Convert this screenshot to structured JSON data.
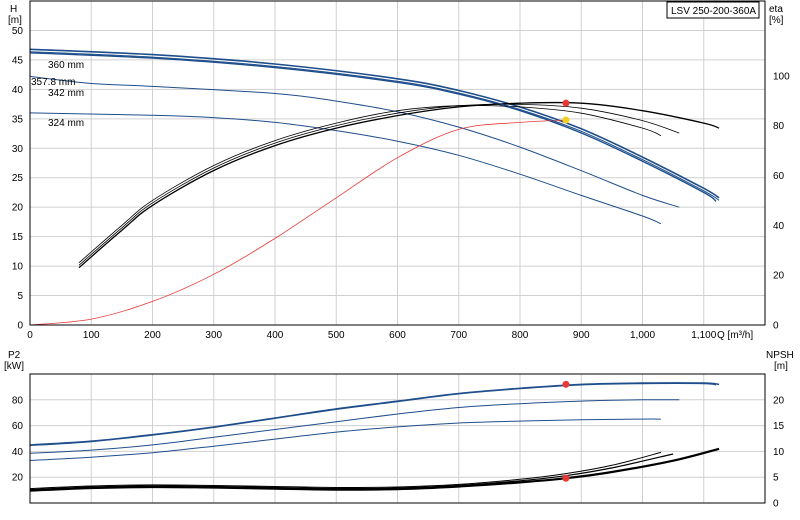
{
  "chart_data": [
    {
      "type": "line",
      "title": "LSV 250-200-360A",
      "y_label_left": "H",
      "y_unit_left": "[m]",
      "y_label_right": "eta",
      "y_unit_right": "[%]",
      "x_label": "Q [m³/h]",
      "x_range": [
        0,
        1200
      ],
      "x_ticks": [
        0,
        100,
        200,
        300,
        400,
        500,
        600,
        700,
        800,
        900,
        1000,
        1100
      ],
      "x_tick_labels": [
        "0",
        "100",
        "200",
        "300",
        "400",
        "500",
        "600",
        "700",
        "800",
        "900",
        "1,000",
        "1,100"
      ],
      "y_range_left": [
        0,
        55
      ],
      "y_ticks_left": [
        0,
        5,
        10,
        15,
        20,
        25,
        30,
        35,
        40,
        45,
        50
      ],
      "y_range_right": [
        0,
        130
      ],
      "y_ticks_right": [
        0,
        20,
        40,
        60,
        80,
        100
      ],
      "grid": true,
      "colors": {
        "curve": "#1f4e8c",
        "duty": "#e53935",
        "eta": "#000000",
        "duty_point_head": "#f5d020"
      },
      "series": [
        {
          "name": "360 mm",
          "axis": "left",
          "x": [
            0,
            200,
            400,
            600,
            700,
            800,
            900,
            1000,
            1100,
            1125
          ],
          "y": [
            46.8,
            45.9,
            44.3,
            41.8,
            39.8,
            37.0,
            33.3,
            28.5,
            23.2,
            21.6
          ]
        },
        {
          "name": "357.8 mm",
          "axis": "left",
          "x": [
            0,
            200,
            400,
            600,
            700,
            800,
            900,
            1000,
            1100,
            1120
          ],
          "y": [
            46.2,
            45.3,
            43.7,
            41.2,
            39.2,
            36.4,
            32.6,
            27.8,
            22.5,
            21.0
          ]
        },
        {
          "name": "342 mm",
          "axis": "left",
          "x": [
            0,
            100,
            200,
            400,
            500,
            600,
            700,
            800,
            900,
            1000,
            1060
          ],
          "y": [
            42.2,
            41.0,
            40.5,
            39.3,
            38.0,
            36.2,
            33.6,
            30.2,
            26.2,
            22.0,
            20.0
          ]
        },
        {
          "name": "324 mm",
          "axis": "left",
          "x": [
            0,
            200,
            300,
            400,
            500,
            600,
            700,
            800,
            900,
            1000,
            1030
          ],
          "y": [
            36.0,
            35.6,
            35.2,
            34.4,
            33.0,
            31.2,
            28.8,
            25.6,
            22.0,
            18.5,
            17.2
          ]
        },
        {
          "name": "",
          "axis": "left",
          "x": [
            0,
            100,
            200,
            300,
            400,
            500,
            600,
            700,
            800,
            875
          ],
          "y": [
            0,
            1.0,
            4.0,
            8.6,
            14.7,
            21.6,
            28.4,
            33.2,
            34.4,
            34.8
          ]
        },
        {
          "name": "",
          "axis": "right",
          "x": [
            80,
            150,
            200,
            300,
            400,
            500,
            600,
            700,
            800,
            900,
            1000,
            1100,
            1125
          ],
          "y": [
            23,
            38,
            48,
            62,
            72,
            79,
            84,
            87.5,
            89,
            89,
            86,
            81,
            79
          ]
        },
        {
          "name": "",
          "axis": "right",
          "x": [
            80,
            150,
            200,
            300,
            400,
            500,
            600,
            700,
            800,
            900,
            1000,
            1060
          ],
          "y": [
            24,
            39,
            49,
            63,
            73,
            80,
            85,
            88,
            88.5,
            87,
            82,
            77
          ]
        },
        {
          "name": "",
          "axis": "right",
          "x": [
            80,
            150,
            200,
            300,
            400,
            500,
            600,
            700,
            800,
            900,
            1000,
            1030
          ],
          "y": [
            25,
            40,
            50,
            64,
            74,
            81,
            86,
            88,
            87.5,
            85,
            79,
            76
          ]
        }
      ],
      "duty_points": [
        {
          "axis": "left",
          "x": 875,
          "y": 34.8,
          "color": "#f5d020"
        },
        {
          "axis": "right",
          "x": 875,
          "y": 89,
          "color": "#e53935"
        }
      ]
    },
    {
      "type": "line",
      "y_label_left": "P2",
      "y_unit_left": "[kW]",
      "y_label_right": "NPSH",
      "y_unit_right": "[m]",
      "x_range": [
        0,
        1200
      ],
      "y_range_left": [
        0,
        100
      ],
      "y_ticks_left": [
        20,
        40,
        60,
        80
      ],
      "y_range_right": [
        0,
        25
      ],
      "y_ticks_right": [
        0,
        5,
        10,
        15,
        20
      ],
      "grid": true,
      "series": [
        {
          "name": "",
          "axis": "left",
          "x": [
            0,
            100,
            200,
            300,
            400,
            500,
            600,
            700,
            800,
            900,
            1000,
            1100,
            1125
          ],
          "y": [
            45,
            48,
            53,
            59,
            66,
            73,
            79,
            85,
            89,
            92,
            93,
            93,
            92
          ]
        },
        {
          "name": "",
          "axis": "left",
          "x": [
            0,
            100,
            200,
            300,
            400,
            500,
            600,
            700,
            800,
            900,
            1000,
            1100,
            1120
          ],
          "y": [
            44.5,
            47.5,
            52.5,
            58.5,
            65.5,
            72.5,
            78.5,
            84.5,
            88.5,
            91.5,
            92.5,
            92.5,
            91.5
          ]
        },
        {
          "name": "",
          "axis": "left",
          "x": [
            0,
            100,
            200,
            300,
            400,
            500,
            600,
            700,
            800,
            900,
            1000,
            1060
          ],
          "y": [
            38.5,
            41,
            45,
            51,
            57,
            63,
            69,
            74,
            77,
            79,
            80,
            80
          ]
        },
        {
          "name": "",
          "axis": "left",
          "x": [
            0,
            100,
            200,
            300,
            400,
            500,
            600,
            700,
            800,
            900,
            1000,
            1030
          ],
          "y": [
            33,
            35.5,
            39,
            44,
            49.5,
            55,
            59,
            62,
            63.5,
            64.5,
            65,
            65
          ]
        },
        {
          "name": "",
          "axis": "right",
          "x": [
            0,
            100,
            200,
            300,
            400,
            500,
            600,
            700,
            800,
            875,
            950,
            1050,
            1125
          ],
          "y": [
            2.4,
            2.9,
            3.1,
            3.0,
            2.8,
            2.6,
            2.7,
            3.2,
            4.0,
            4.8,
            6.0,
            8.2,
            10.5
          ]
        },
        {
          "name": "",
          "axis": "right",
          "x": [
            0,
            100,
            200,
            300,
            400,
            500,
            600,
            700,
            800,
            875,
            950,
            1050
          ],
          "y": [
            2.6,
            3.1,
            3.3,
            3.2,
            3.0,
            2.8,
            2.9,
            3.4,
            4.3,
            5.3,
            6.8,
            9.5
          ]
        },
        {
          "name": "",
          "axis": "right",
          "x": [
            0,
            100,
            200,
            300,
            400,
            500,
            600,
            700,
            800,
            875,
            950,
            1030
          ],
          "y": [
            2.8,
            3.3,
            3.5,
            3.4,
            3.2,
            3.0,
            3.1,
            3.6,
            4.6,
            5.7,
            7.3,
            9.8
          ]
        }
      ],
      "duty_points": [
        {
          "axis": "left",
          "x": 875,
          "y": 92,
          "color": "#e53935"
        },
        {
          "axis": "right",
          "x": 875,
          "y": 4.8,
          "color": "#e53935"
        }
      ]
    }
  ]
}
